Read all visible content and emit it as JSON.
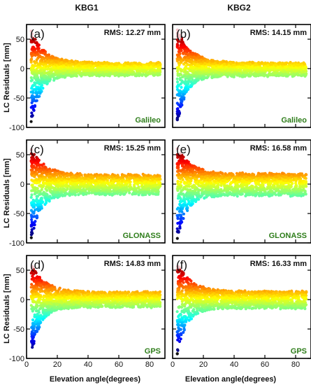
{
  "figure": {
    "column_titles": [
      "KBG1",
      "KBG2"
    ],
    "ylabel": "LC Residuals [mm]",
    "xlabel": "Elevation angle(degrees)"
  },
  "chart_data": [
    {
      "type": "scatter",
      "panel": "(a)",
      "column": "KBG1",
      "system": "Galileo",
      "rms": "RMS: 12.27 mm",
      "xlim": [
        0,
        90
      ],
      "ylim": [
        -100,
        75
      ],
      "xticks": [
        0,
        20,
        40,
        60,
        80
      ],
      "yticks": [
        -100,
        -50,
        0,
        50
      ],
      "color_map": "rainbow by residual (blue negative to red positive)",
      "spread": {
        "neg_peak": -95,
        "pos_peak": 65,
        "neg_tail": -12,
        "pos_tail": 10
      },
      "system_color": "#2e7d1a"
    },
    {
      "type": "scatter",
      "panel": "(b)",
      "column": "KBG2",
      "system": "Galileo",
      "rms": "RMS: 14.15 mm",
      "xlim": [
        0,
        90
      ],
      "ylim": [
        -100,
        75
      ],
      "xticks": [
        0,
        20,
        40,
        60,
        80
      ],
      "yticks": [
        -100,
        -50,
        0,
        50
      ],
      "color_map": "rainbow by residual (blue negative to red positive)",
      "spread": {
        "neg_peak": -95,
        "pos_peak": 68,
        "neg_tail": -13,
        "pos_tail": 10
      },
      "system_color": "#2e7d1a"
    },
    {
      "type": "scatter",
      "panel": "(c)",
      "column": "KBG1",
      "system": "GLONASS",
      "rms": "RMS: 15.25 mm",
      "xlim": [
        0,
        90
      ],
      "ylim": [
        -100,
        75
      ],
      "xticks": [
        0,
        20,
        40,
        60,
        80
      ],
      "yticks": [
        -100,
        -50,
        0,
        50
      ],
      "color_map": "rainbow by residual (blue negative to red positive)",
      "spread": {
        "neg_peak": -95,
        "pos_peak": 60,
        "neg_tail": -18,
        "pos_tail": 16
      },
      "system_color": "#2e7d1a"
    },
    {
      "type": "scatter",
      "panel": "(e)",
      "column": "KBG2",
      "system": "GLONASS",
      "rms": "RMS: 16.58 mm",
      "xlim": [
        0,
        90
      ],
      "ylim": [
        -100,
        75
      ],
      "xticks": [
        0,
        20,
        40,
        60,
        80
      ],
      "yticks": [
        -100,
        -50,
        0,
        50
      ],
      "color_map": "rainbow by residual (blue negative to red positive)",
      "spread": {
        "neg_peak": -95,
        "pos_peak": 62,
        "neg_tail": -20,
        "pos_tail": 18
      },
      "system_color": "#2e7d1a"
    },
    {
      "type": "scatter",
      "panel": "(d)",
      "column": "KBG1",
      "system": "GPS",
      "rms": "RMS: 14.83 mm",
      "xlim": [
        0,
        90
      ],
      "ylim": [
        -100,
        75
      ],
      "xticks": [
        0,
        20,
        40,
        60,
        80
      ],
      "yticks": [
        -100,
        -50,
        0,
        50
      ],
      "color_map": "rainbow by residual (blue negative to red positive)",
      "spread": {
        "neg_peak": -95,
        "pos_peak": 60,
        "neg_tail": -13,
        "pos_tail": 13
      },
      "system_color": "#2e7d1a"
    },
    {
      "type": "scatter",
      "panel": "(f)",
      "column": "KBG2",
      "system": "GPS",
      "rms": "RMS: 16.33 mm",
      "xlim": [
        0,
        90
      ],
      "ylim": [
        -100,
        75
      ],
      "xticks": [
        0,
        20,
        40,
        60,
        80
      ],
      "yticks": [
        -100,
        -50,
        0,
        50
      ],
      "color_map": "rainbow by residual (blue negative to red positive)",
      "spread": {
        "neg_peak": -95,
        "pos_peak": 62,
        "neg_tail": -15,
        "pos_tail": 14
      },
      "system_color": "#2e7d1a"
    }
  ]
}
